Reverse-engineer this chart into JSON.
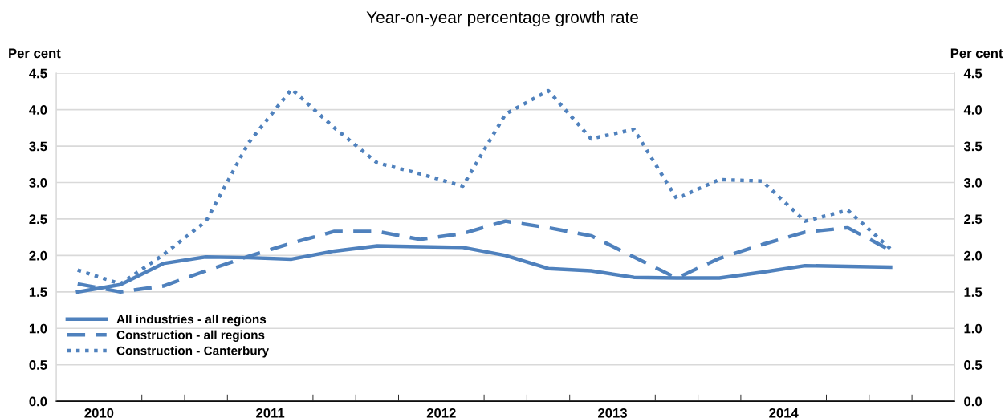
{
  "chart_data": {
    "type": "line",
    "title": "Year-on-year percentage growth rate",
    "ylabel": "Per cent",
    "y2label": "Per cent",
    "x": [
      2010.375,
      2010.625,
      2010.875,
      2011.125,
      2011.375,
      2011.625,
      2011.875,
      2012.125,
      2012.375,
      2012.625,
      2012.875,
      2013.125,
      2013.375,
      2013.625,
      2013.875,
      2014.125,
      2014.375,
      2014.625,
      2014.875,
      2015.125
    ],
    "series": [
      {
        "name": "All industries - all regions",
        "color": "#4f81bd",
        "line_style": "solid",
        "values": [
          1.5,
          1.6,
          1.89,
          1.98,
          1.97,
          1.95,
          2.06,
          2.13,
          2.12,
          2.11,
          2.0,
          1.82,
          1.79,
          1.7,
          1.69,
          1.69,
          1.77,
          1.86,
          1.85,
          1.84
        ]
      },
      {
        "name": "Construction - all regions",
        "color": "#4f81bd",
        "line_style": "dashed",
        "values": [
          1.61,
          1.5,
          1.58,
          1.79,
          1.99,
          2.17,
          2.33,
          2.33,
          2.22,
          2.3,
          2.47,
          2.38,
          2.27,
          1.98,
          1.69,
          1.96,
          2.15,
          2.32,
          2.38,
          2.07
        ]
      },
      {
        "name": "Construction - Canterbury",
        "color": "#4f81bd",
        "line_style": "dotted",
        "values": [
          1.8,
          1.61,
          2.01,
          2.47,
          3.55,
          4.28,
          3.75,
          3.27,
          3.12,
          2.95,
          3.94,
          4.26,
          3.6,
          3.73,
          2.78,
          3.04,
          3.02,
          2.47,
          2.62,
          2.09
        ]
      }
    ],
    "xlim": [
      2010.25,
      2015.5
    ],
    "xticks": [
      {
        "value": 2010.5,
        "label": "2010"
      },
      {
        "value": 2011.5,
        "label": "2011"
      },
      {
        "value": 2012.5,
        "label": "2012"
      },
      {
        "value": 2013.5,
        "label": "2013"
      },
      {
        "value": 2014.5,
        "label": "2014"
      },
      {
        "value": 2010.75,
        "label": null
      },
      {
        "value": 2011,
        "label": null
      },
      {
        "value": 2011.25,
        "label": null
      },
      {
        "value": 2011.75,
        "label": null
      },
      {
        "value": 2012,
        "label": null
      },
      {
        "value": 2012.25,
        "label": null
      },
      {
        "value": 2012.75,
        "label": null
      },
      {
        "value": 2013,
        "label": null
      },
      {
        "value": 2013.25,
        "label": null
      },
      {
        "value": 2013.75,
        "label": null
      },
      {
        "value": 2014,
        "label": null
      },
      {
        "value": 2014.25,
        "label": null
      },
      {
        "value": 2014.75,
        "label": null
      },
      {
        "value": 2015,
        "label": null
      },
      {
        "value": 2015.25,
        "label": null
      }
    ],
    "ylim": [
      0,
      4.5
    ],
    "yticks": [
      {
        "value": 0,
        "label": "0.0"
      },
      0.5,
      {
        "value": 1,
        "label": "1.0"
      },
      1.5,
      {
        "value": 2,
        "label": "2.0"
      },
      2.5,
      {
        "value": 3,
        "label": "3.0"
      },
      3.5,
      {
        "value": 4,
        "label": "4.0"
      },
      4.5
    ],
    "y2lim": [
      0,
      4.5
    ],
    "y2ticks": [
      {
        "value": 0,
        "label": "0.0"
      },
      0.5,
      {
        "value": 1,
        "label": "1.0"
      },
      1.5,
      {
        "value": 2,
        "label": "2.0"
      },
      2.5,
      {
        "value": 3,
        "label": "3.0"
      },
      3.5,
      {
        "value": 4,
        "label": "4.0"
      },
      4.5
    ],
    "grid": "y",
    "legend": "lower left"
  }
}
